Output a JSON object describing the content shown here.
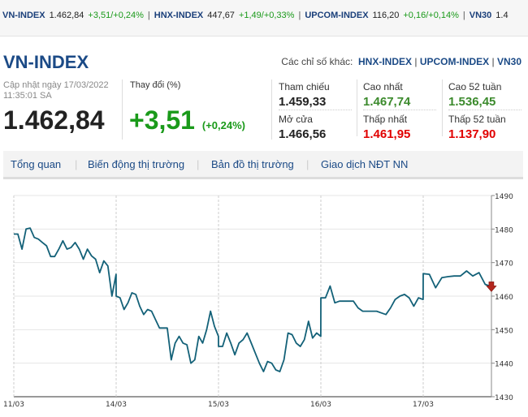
{
  "ticker": [
    {
      "name": "VN-INDEX",
      "value": "1.462,84",
      "change": "+3,51/+0,24%"
    },
    {
      "name": "HNX-INDEX",
      "value": "447,67",
      "change": "+1,49/+0,33%"
    },
    {
      "name": "UPCOM-INDEX",
      "value": "116,20",
      "change": "+0,16/+0,14%"
    },
    {
      "name": "VN30",
      "value": "1.4",
      "change": ""
    }
  ],
  "header": {
    "title": "VN-INDEX",
    "others_label": "Các chỉ số khác:",
    "others": [
      "HNX-INDEX",
      "UPCOM-INDEX",
      "VN30"
    ]
  },
  "summary": {
    "updated": "Cập nhật ngày 17/03/2022",
    "time": "11:35:01 SA",
    "price": "1.462,84",
    "change_label": "Thay đổi (%)",
    "change": "+3,51",
    "change_pct": "(+0,24%)"
  },
  "stats": [
    {
      "label": "Tham chiếu",
      "value": "1.459,33",
      "color": "dark"
    },
    {
      "label": "Mở cửa",
      "value": "1.466,56",
      "color": "dark"
    },
    {
      "label": "Cao nhất",
      "value": "1.467,74",
      "color": "green"
    },
    {
      "label": "Thấp nhất",
      "value": "1.461,95",
      "color": "red"
    },
    {
      "label": "Cao 52 tuần",
      "value": "1.536,45",
      "color": "green"
    },
    {
      "label": "Thấp 52 tuần",
      "value": "1.137,90",
      "color": "red"
    }
  ],
  "tabs": [
    "Tổng quan",
    "Biến động thị trường",
    "Bản đồ thị trường",
    "Giao dịch NĐT NN"
  ],
  "chart_data": {
    "type": "line",
    "ylim": [
      1430,
      1490
    ],
    "yticks": [
      1430,
      1440,
      1450,
      1460,
      1470,
      1480,
      1490
    ],
    "y_axis": "right",
    "grid": true,
    "line_color": "#136178",
    "marker": "red-down-arrow",
    "sessions": [
      {
        "date": "11/03",
        "values": [
          1478.5,
          1478.5,
          1474,
          1480,
          1480.3,
          1477.5,
          1477,
          1476,
          1475,
          1471.8,
          1471.8,
          1474,
          1476.5,
          1474,
          1474.5,
          1476,
          1474,
          1471,
          1474,
          1472,
          1471,
          1467,
          1470.5,
          1469,
          1460,
          1466.5
        ]
      },
      {
        "date": "14/03",
        "values": [
          1460,
          1459.5,
          1456,
          1458,
          1461,
          1460.5,
          1457,
          1454.5,
          1456,
          1455.5,
          1453,
          1450.5,
          1450.5,
          1450.5,
          1441,
          1446,
          1448,
          1446,
          1445.5,
          1440,
          1441,
          1448,
          1446,
          1450,
          1455.5,
          1451,
          1448
        ]
      },
      {
        "date": "15/03",
        "values": [
          1445,
          1445,
          1449,
          1446,
          1442.5,
          1446,
          1447,
          1449,
          1446,
          1443,
          1440,
          1437.5,
          1440.5,
          1440,
          1438,
          1437.5,
          1441,
          1449,
          1448.5,
          1446,
          1445,
          1447,
          1452.5,
          1447.5,
          1449,
          1448
        ]
      },
      {
        "date": "16/03",
        "values": [
          1459.5,
          1459.5,
          1463,
          1458,
          1458.5,
          1458.5,
          1458.5,
          1458.5,
          1456.5,
          1455.5,
          1455.5,
          1455.5,
          1455.5,
          1455,
          1454.5,
          1456.5,
          1459,
          1460,
          1460.5,
          1459.5,
          1457,
          1459.5,
          1459
        ]
      },
      {
        "date": "17/03",
        "values": [
          1466.7,
          1466.5,
          1462.5,
          1465.5,
          1465.8,
          1466,
          1466,
          1467.5,
          1466,
          1467,
          1463.5,
          1462.8
        ]
      }
    ]
  }
}
